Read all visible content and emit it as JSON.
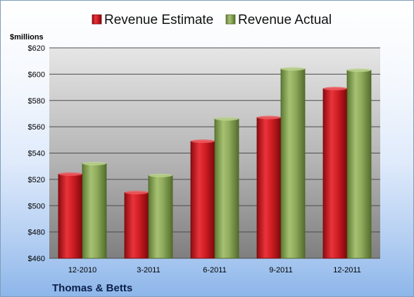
{
  "chart_data": {
    "type": "bar",
    "categories": [
      "12-2010",
      "3-2011",
      "6-2011",
      "9-2011",
      "12-2011"
    ],
    "series": [
      {
        "name": "Revenue Estimate",
        "values": [
          524,
          510,
          549,
          567,
          589
        ],
        "color": "#c8171c"
      },
      {
        "name": "Revenue Actual",
        "values": [
          532,
          523,
          566,
          604,
          603
        ],
        "color": "#8da95a"
      }
    ],
    "ylabel": "$millions",
    "ylim": [
      460,
      620
    ],
    "ytick_step": 20,
    "ytick_labels": [
      "$460",
      "$480",
      "$500",
      "$520",
      "$540",
      "$560",
      "$580",
      "$600",
      "$620"
    ],
    "grid": true,
    "legend_position": "top"
  },
  "footer": {
    "company": "Thomas & Betts"
  }
}
